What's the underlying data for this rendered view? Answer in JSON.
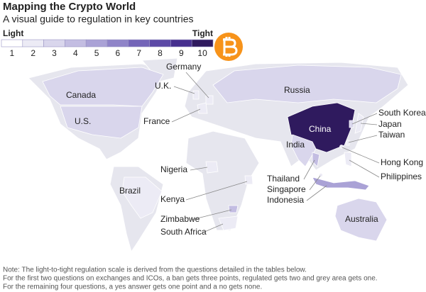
{
  "header": {
    "title": "Mapping the Crypto World",
    "subtitle": "A visual guide to regulation in key countries"
  },
  "scale": {
    "low_label": "Light",
    "high_label": "Tight",
    "steps": [
      {
        "value": 1,
        "color": "#ffffff"
      },
      {
        "value": 2,
        "color": "#ecebf5"
      },
      {
        "value": 3,
        "color": "#d9d6ec"
      },
      {
        "value": 4,
        "color": "#c3bde2"
      },
      {
        "value": 5,
        "color": "#aaa2d6"
      },
      {
        "value": 6,
        "color": "#8f84c8"
      },
      {
        "value": 7,
        "color": "#7465b8"
      },
      {
        "value": 8,
        "color": "#5c49a6"
      },
      {
        "value": 9,
        "color": "#462f8e"
      },
      {
        "value": 10,
        "color": "#2f1a5e"
      }
    ]
  },
  "countries": [
    {
      "name": "Canada",
      "level": 3
    },
    {
      "name": "U.S.",
      "level": 3
    },
    {
      "name": "Russia",
      "level": 3
    },
    {
      "name": "China",
      "level": 10
    },
    {
      "name": "India",
      "level": 3
    },
    {
      "name": "Brazil",
      "level": 2
    },
    {
      "name": "Australia",
      "level": 3
    },
    {
      "name": "Indonesia",
      "level": 5
    },
    {
      "name": "Thailand",
      "level": 4
    },
    {
      "name": "Nigeria",
      "level": 2
    },
    {
      "name": "South Africa",
      "level": 2
    },
    {
      "name": "Zimbabwe",
      "level": 4
    },
    {
      "name": "Kenya",
      "level": 2
    },
    {
      "name": "Germany",
      "level": 2
    },
    {
      "name": "France",
      "level": 2
    },
    {
      "name": "U.K.",
      "level": 2
    },
    {
      "name": "Japan",
      "level": 2
    },
    {
      "name": "South Korea",
      "level": 3
    },
    {
      "name": "Taiwan",
      "level": 2
    },
    {
      "name": "Hong Kong",
      "level": 2
    },
    {
      "name": "Philippines",
      "level": 2
    },
    {
      "name": "Singapore",
      "level": 2
    }
  ],
  "notes": [
    "Note: The light-to-tight regulation scale is derived from the questions detailed in the tables below.",
    "For the first two questions on exchanges and ICOs, a ban gets three points, regulated gets two and grey area gets one.",
    "For the remaining four questions, a yes answer gets one point and a no gets none."
  ]
}
